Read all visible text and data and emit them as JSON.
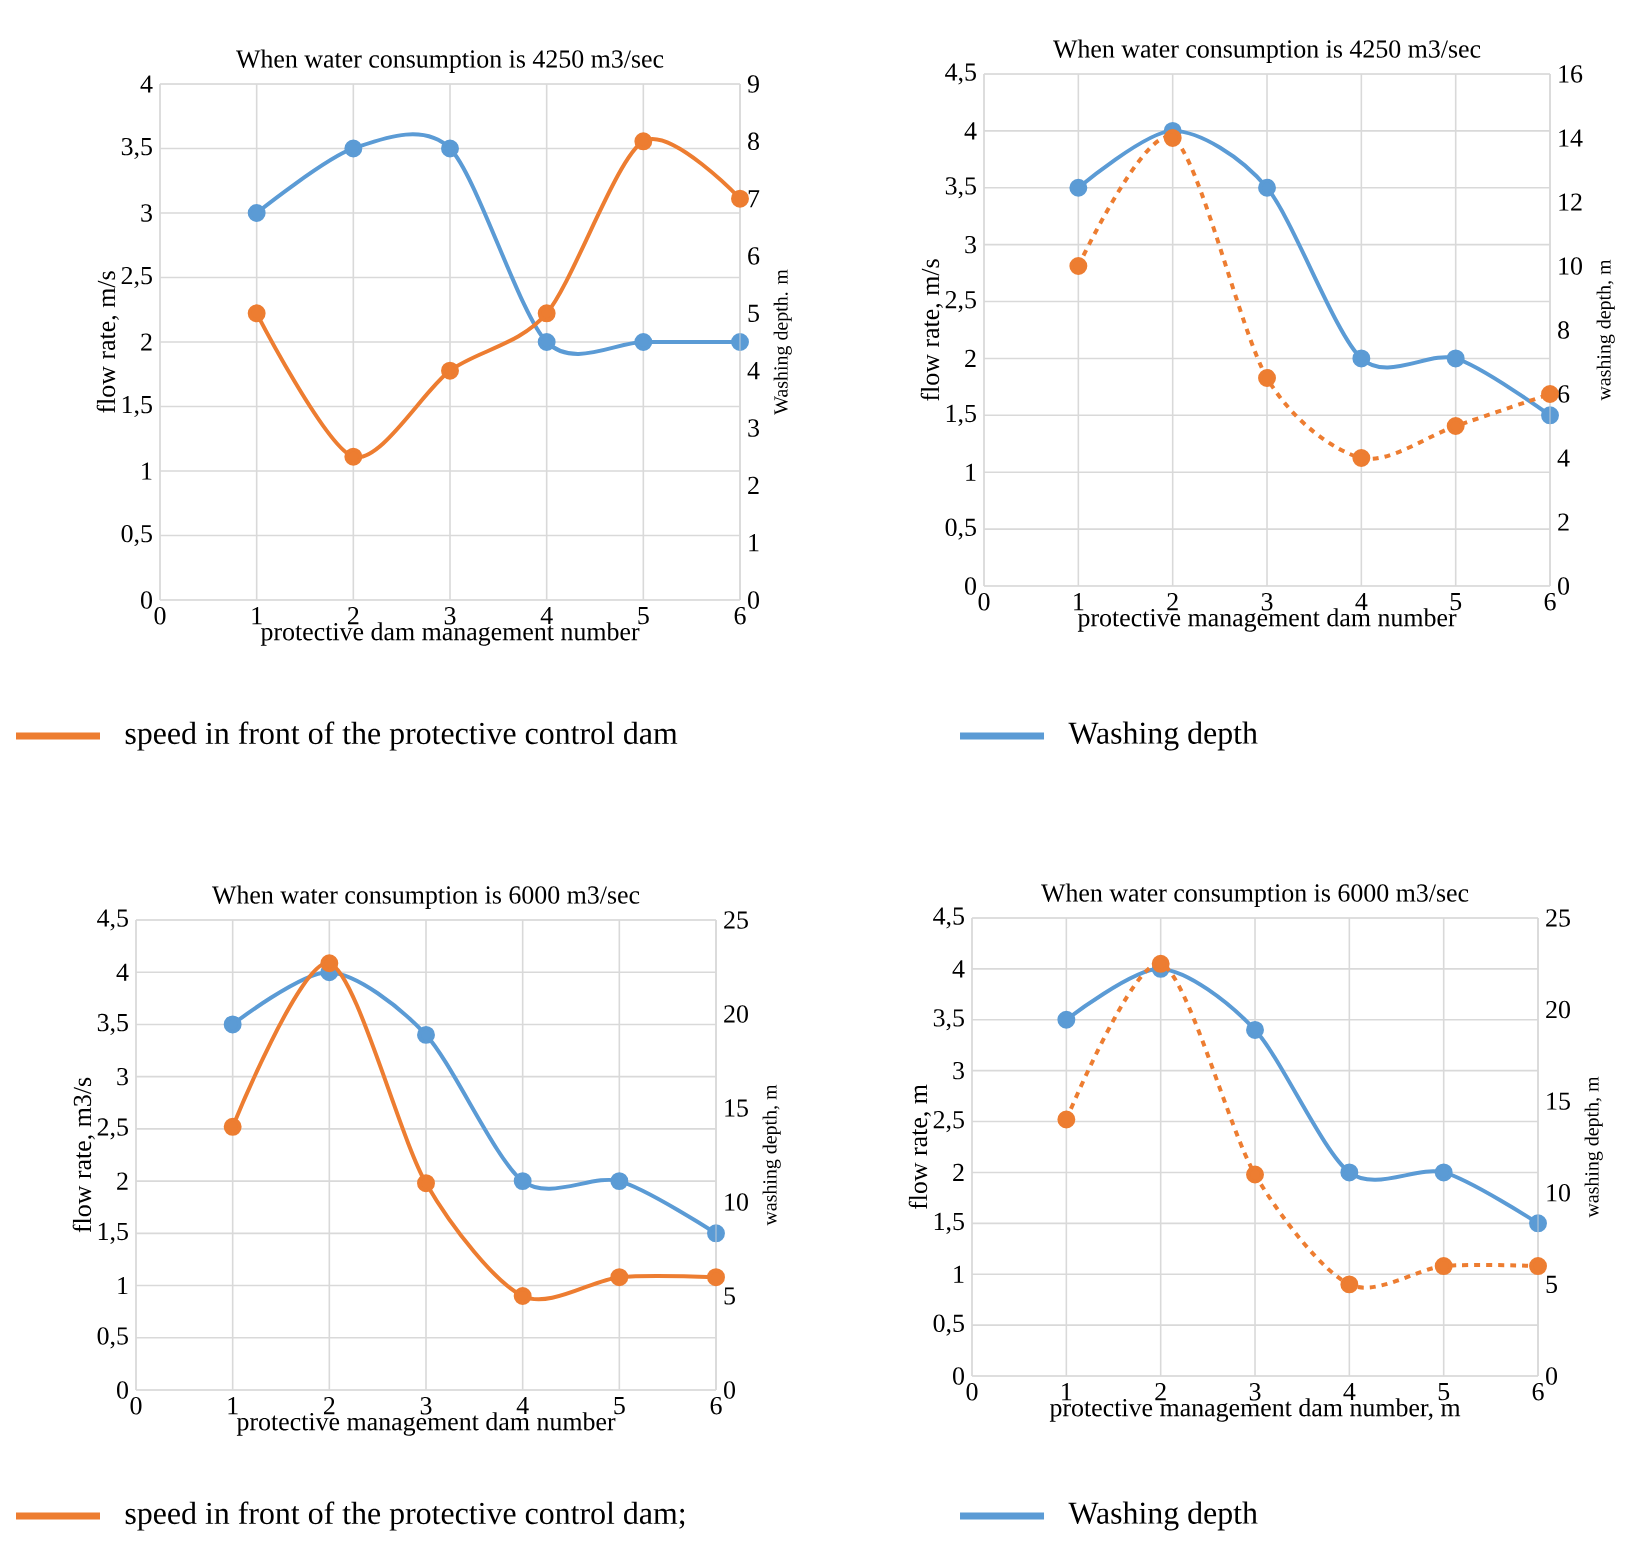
{
  "chart_data": [
    {
      "type": "line",
      "title": "When water consumption is 4250 m3/sec",
      "xlabel": "protective dam management number",
      "ylabel": "flow rate, m/s",
      "y2label": "Washing depth. m",
      "x": [
        1,
        2,
        3,
        4,
        5,
        6
      ],
      "xlim": [
        0,
        6
      ],
      "xticks": [
        0,
        1,
        2,
        3,
        4,
        5,
        6
      ],
      "ylim": [
        0,
        4
      ],
      "yticks": [
        0,
        {
          "value": 0.5,
          "label": "0,5"
        },
        1,
        {
          "value": 1.5,
          "label": "1,5"
        },
        2,
        {
          "value": 2.5,
          "label": "2,5"
        },
        3,
        {
          "value": 3.5,
          "label": "3,5"
        },
        4
      ],
      "y2lim": [
        0,
        9
      ],
      "y2ticks": [
        0,
        1,
        2,
        3,
        4,
        5,
        6,
        7,
        8,
        9
      ],
      "grid": true,
      "marker": "circle",
      "legend": "bottom",
      "series": [
        {
          "name": "speed in front of the protective control dam",
          "color": "#ed7d31",
          "axis": "y2",
          "line_style": "solid",
          "values": [
            5,
            2.5,
            4,
            5,
            8,
            7
          ]
        },
        {
          "name": "Washing depth",
          "color": "#5b9bd5",
          "line_style": "solid",
          "values": [
            3,
            3.5,
            3.5,
            2,
            2,
            2
          ]
        }
      ]
    },
    {
      "type": "line",
      "title": "When water consumption is 4250 m3/sec",
      "xlabel": "protective management dam number",
      "ylabel": "flow rate, m/s",
      "y2label": "washing depth, m",
      "x": [
        1,
        2,
        3,
        4,
        5,
        6
      ],
      "xlim": [
        0,
        6
      ],
      "xticks": [
        0,
        1,
        2,
        3,
        4,
        5,
        6
      ],
      "ylim": [
        0,
        4.5
      ],
      "yticks": [
        0,
        {
          "value": 0.5,
          "label": "0,5"
        },
        1,
        {
          "value": 1.5,
          "label": "1,5"
        },
        2,
        {
          "value": 2.5,
          "label": "2,5"
        },
        3,
        {
          "value": 3.5,
          "label": "3,5"
        },
        4,
        {
          "value": 4.5,
          "label": "4,5"
        }
      ],
      "y2lim": [
        0,
        16
      ],
      "y2ticks": [
        0,
        2,
        4,
        6,
        8,
        10,
        12,
        14,
        16
      ],
      "grid": true,
      "marker": "circle",
      "series": [
        {
          "color": "#ed7d31",
          "axis": "y2",
          "line_style": "dashed",
          "values": [
            10,
            14,
            6.5,
            4,
            5,
            6
          ]
        },
        {
          "color": "#5b9bd5",
          "line_style": "solid",
          "values": [
            3.5,
            4,
            3.5,
            2,
            2,
            1.5
          ]
        }
      ]
    },
    {
      "type": "line",
      "title": "When water consumption is 6000 m3/sec",
      "xlabel": "protective management dam number",
      "ylabel": "flow rate, m3/s",
      "y2label": "washing depth, m",
      "x": [
        1,
        2,
        3,
        4,
        5,
        6
      ],
      "xlim": [
        0,
        6
      ],
      "xticks": [
        0,
        1,
        2,
        3,
        4,
        5,
        6
      ],
      "ylim": [
        0,
        4.5
      ],
      "yticks": [
        0,
        {
          "value": 0.5,
          "label": "0,5"
        },
        1,
        {
          "value": 1.5,
          "label": "1,5"
        },
        2,
        {
          "value": 2.5,
          "label": "2,5"
        },
        3,
        {
          "value": 3.5,
          "label": "3,5"
        },
        4,
        {
          "value": 4.5,
          "label": "4,5"
        }
      ],
      "y2lim": [
        0,
        25
      ],
      "y2ticks": [
        0,
        5,
        10,
        15,
        20,
        25
      ],
      "grid": true,
      "marker": "circle",
      "legend": "bottom",
      "series": [
        {
          "name": "speed in front of the protective control dam;",
          "color": "#ed7d31",
          "axis": "y2",
          "line_style": "solid",
          "values": [
            14,
            22.7,
            11,
            5,
            6,
            6
          ]
        },
        {
          "name": "Washing depth",
          "color": "#5b9bd5",
          "line_style": "solid",
          "values": [
            3.5,
            4,
            3.4,
            2,
            2,
            1.5
          ]
        }
      ]
    },
    {
      "type": "line",
      "title": "When water consumption is 6000 m3/sec",
      "xlabel": "protective management dam number, m",
      "ylabel": "flow rate, m",
      "y2label": "washing depth, m",
      "x": [
        1,
        2,
        3,
        4,
        5,
        6
      ],
      "xlim": [
        0,
        6
      ],
      "xticks": [
        0,
        1,
        2,
        3,
        4,
        5,
        6
      ],
      "ylim": [
        0,
        4.5
      ],
      "yticks": [
        0,
        {
          "value": 0.5,
          "label": "0,5"
        },
        1,
        {
          "value": 1.5,
          "label": "1,5"
        },
        2,
        {
          "value": 2.5,
          "label": "2,5"
        },
        3,
        {
          "value": 3.5,
          "label": "3,5"
        },
        4,
        {
          "value": 4.5,
          "label": "4,5"
        }
      ],
      "y2lim": [
        0,
        25
      ],
      "y2ticks": [
        0,
        5,
        10,
        15,
        20,
        25
      ],
      "grid": true,
      "marker": "circle",
      "series": [
        {
          "color": "#ed7d31",
          "axis": "y2",
          "line_style": "dashed",
          "values": [
            14,
            22.5,
            11,
            5,
            6,
            6
          ]
        },
        {
          "color": "#5b9bd5",
          "line_style": "solid",
          "values": [
            3.5,
            4,
            3.4,
            2,
            2,
            1.5
          ]
        }
      ]
    }
  ]
}
